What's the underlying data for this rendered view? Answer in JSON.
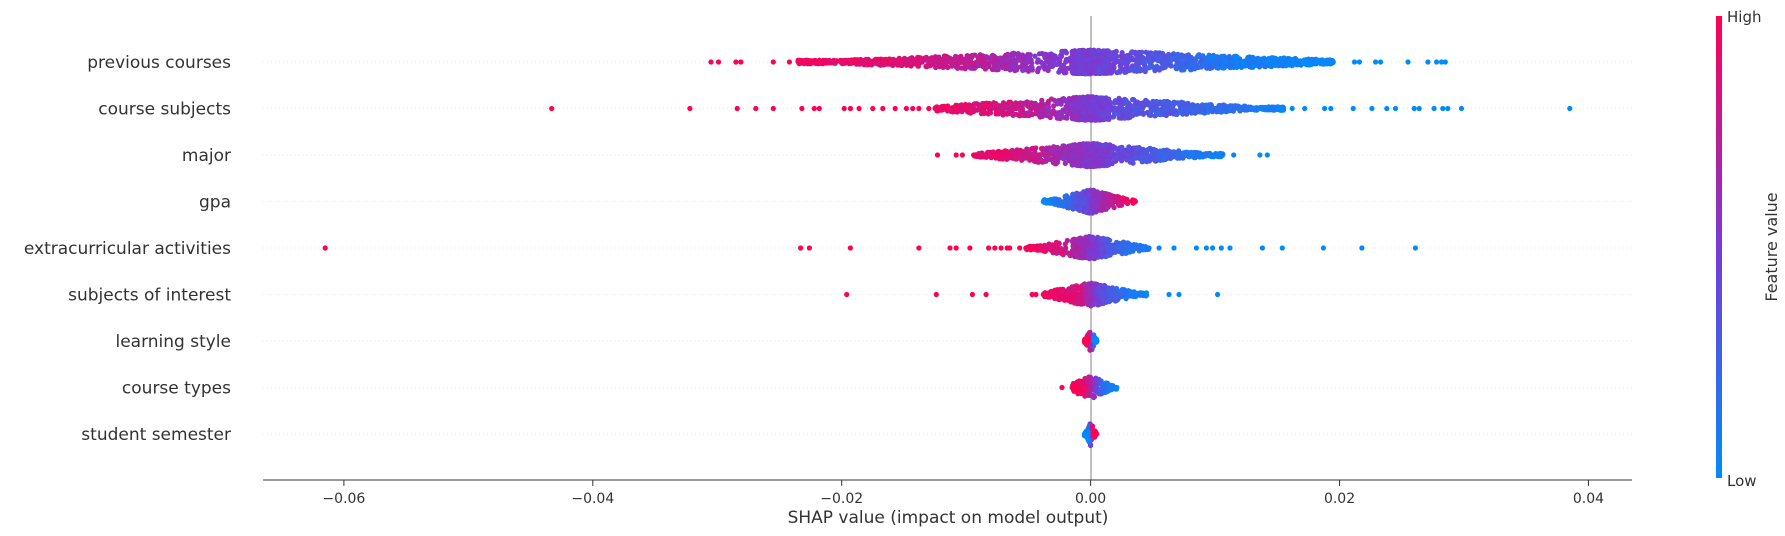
{
  "chart_data": {
    "type": "scatter",
    "subtype": "beeswarm",
    "xlabel": "SHAP value (impact on model output)",
    "xlim": [
      -0.0665,
      0.0435
    ],
    "xticks": [
      -0.06,
      -0.04,
      -0.02,
      0.0,
      0.02,
      0.04
    ],
    "xtick_labels": [
      "−0.06",
      "−0.04",
      "−0.02",
      "0.00",
      "0.02",
      "0.04"
    ],
    "grid": false,
    "colorbar": {
      "label": "Feature value",
      "high_label": "High",
      "low_label": "Low",
      "low_color": "#008bfb",
      "mid_color": "#7a3ad4",
      "high_color": "#ff0052"
    },
    "features": [
      {
        "name": "previous courses",
        "points": [
          [
            -0.0305,
            1
          ],
          [
            -0.0299,
            1
          ],
          [
            -0.0285,
            1
          ],
          [
            -0.0281,
            1
          ],
          [
            -0.0255,
            1
          ],
          [
            -0.0242,
            1
          ],
          [
            -0.0235,
            0.95
          ],
          [
            -0.022,
            0.95
          ],
          [
            -0.02,
            0.92
          ],
          [
            -0.018,
            0.9
          ],
          [
            -0.016,
            0.88
          ],
          [
            -0.014,
            0.85
          ],
          [
            -0.012,
            0.8
          ],
          [
            -0.01,
            0.75
          ],
          [
            -0.008,
            0.7
          ],
          [
            -0.006,
            0.62
          ],
          [
            -0.004,
            0.55
          ],
          [
            -0.002,
            0.5
          ],
          [
            0.002,
            0.45
          ],
          [
            0.004,
            0.35
          ],
          [
            0.006,
            0.3
          ],
          [
            0.008,
            0.22
          ],
          [
            0.01,
            0.15
          ],
          [
            0.012,
            0.1
          ],
          [
            0.014,
            0.08
          ],
          [
            0.016,
            0.05
          ],
          [
            0.018,
            0.03
          ],
          [
            0.0195,
            0.02
          ],
          [
            0.0212,
            0
          ],
          [
            0.0216,
            0
          ],
          [
            0.0229,
            0
          ],
          [
            0.0233,
            0
          ],
          [
            0.0255,
            0
          ],
          [
            0.0271,
            0
          ],
          [
            0.0278,
            0
          ],
          [
            0.0282,
            0
          ],
          [
            0.0285,
            0
          ]
        ],
        "range": [
          -0.0235,
          0.0195
        ]
      },
      {
        "name": "course subjects",
        "points": [
          [
            -0.0433,
            1
          ],
          [
            -0.0322,
            1
          ],
          [
            -0.0284,
            1
          ],
          [
            -0.0269,
            1
          ],
          [
            -0.0255,
            1
          ],
          [
            -0.0232,
            1
          ],
          [
            -0.0222,
            1
          ],
          [
            -0.0218,
            1
          ],
          [
            -0.0198,
            1
          ],
          [
            -0.0193,
            1
          ],
          [
            -0.0186,
            1
          ],
          [
            -0.0175,
            1
          ],
          [
            -0.0167,
            1
          ],
          [
            -0.0157,
            1
          ],
          [
            -0.0148,
            1
          ],
          [
            -0.0143,
            1
          ],
          [
            -0.0138,
            1
          ],
          [
            -0.013,
            1
          ],
          [
            -0.0125,
            0.95
          ],
          [
            -0.01,
            0.9
          ],
          [
            -0.008,
            0.85
          ],
          [
            -0.006,
            0.8
          ],
          [
            -0.004,
            0.7
          ],
          [
            -0.002,
            0.6
          ],
          [
            0.002,
            0.4
          ],
          [
            0.004,
            0.35
          ],
          [
            0.006,
            0.3
          ],
          [
            0.008,
            0.25
          ],
          [
            0.01,
            0.2
          ],
          [
            0.012,
            0.15
          ],
          [
            0.013,
            0.12
          ],
          [
            0.014,
            0.08
          ],
          [
            0.0155,
            0.05
          ],
          [
            0.0162,
            0
          ],
          [
            0.0172,
            0
          ],
          [
            0.0188,
            0
          ],
          [
            0.0193,
            0
          ],
          [
            0.0211,
            0
          ],
          [
            0.0226,
            0
          ],
          [
            0.0238,
            0
          ],
          [
            0.0245,
            0
          ],
          [
            0.026,
            0
          ],
          [
            0.0264,
            0
          ],
          [
            0.0276,
            0
          ],
          [
            0.0283,
            0
          ],
          [
            0.0287,
            0
          ],
          [
            0.0298,
            0
          ],
          [
            0.0385,
            0
          ]
        ],
        "range": [
          -0.0125,
          0.0155
        ]
      },
      {
        "name": "major",
        "points": [
          [
            -0.0123,
            1
          ],
          [
            -0.0108,
            1
          ],
          [
            -0.0103,
            1
          ],
          [
            -0.0094,
            0.95
          ],
          [
            -0.008,
            0.9
          ],
          [
            -0.006,
            0.85
          ],
          [
            -0.004,
            0.75
          ],
          [
            -0.002,
            0.6
          ],
          [
            0.001,
            0.5
          ],
          [
            0.003,
            0.4
          ],
          [
            0.005,
            0.3
          ],
          [
            0.007,
            0.2
          ],
          [
            0.009,
            0.12
          ],
          [
            0.01,
            0.08
          ],
          [
            0.0115,
            0.03
          ],
          [
            0.0136,
            0
          ],
          [
            0.0142,
            0
          ]
        ],
        "range": [
          -0.0094,
          0.0108
        ]
      },
      {
        "name": "gpa",
        "points": [
          [
            -0.0038,
            0
          ],
          [
            -0.003,
            0.1
          ],
          [
            -0.002,
            0.2
          ],
          [
            -0.001,
            0.35
          ],
          [
            0.0,
            0.5
          ],
          [
            0.001,
            0.65
          ],
          [
            0.002,
            0.8
          ],
          [
            0.003,
            0.92
          ],
          [
            0.0036,
            1
          ]
        ],
        "range": [
          -0.0038,
          0.0036
        ]
      },
      {
        "name": "extracurricular activities",
        "points": [
          [
            -0.0615,
            1
          ],
          [
            -0.0233,
            1
          ],
          [
            -0.0226,
            1
          ],
          [
            -0.0193,
            1
          ],
          [
            -0.0138,
            1
          ],
          [
            -0.0113,
            1
          ],
          [
            -0.0108,
            1
          ],
          [
            -0.0097,
            1
          ],
          [
            -0.0082,
            1
          ],
          [
            -0.0077,
            1
          ],
          [
            -0.0072,
            1
          ],
          [
            -0.0067,
            1
          ],
          [
            -0.0065,
            1
          ],
          [
            -0.0057,
            1
          ],
          [
            -0.0052,
            0.95
          ],
          [
            -0.004,
            0.9
          ],
          [
            -0.002,
            0.8
          ],
          [
            0.001,
            0.4
          ],
          [
            0.002,
            0.25
          ],
          [
            0.0035,
            0.15
          ],
          [
            0.0047,
            0.1
          ],
          [
            0.0055,
            0.05
          ],
          [
            0.0067,
            0
          ],
          [
            0.0085,
            0
          ],
          [
            0.0093,
            0
          ],
          [
            0.0098,
            0
          ],
          [
            0.0105,
            0
          ],
          [
            0.0112,
            0
          ],
          [
            0.0138,
            0
          ],
          [
            0.0154,
            0
          ],
          [
            0.0187,
            0
          ],
          [
            0.0218,
            0
          ],
          [
            0.0261,
            0
          ]
        ],
        "range": [
          -0.0052,
          0.0047
        ]
      },
      {
        "name": "subjects of interest",
        "points": [
          [
            -0.0196,
            1
          ],
          [
            -0.0124,
            1
          ],
          [
            -0.0095,
            1
          ],
          [
            -0.0084,
            1
          ],
          [
            -0.0047,
            1
          ],
          [
            -0.0044,
            1
          ],
          [
            -0.0038,
            0.95
          ],
          [
            -0.002,
            0.9
          ],
          [
            -0.001,
            0.85
          ],
          [
            0.001,
            0.35
          ],
          [
            0.002,
            0.25
          ],
          [
            0.003,
            0.15
          ],
          [
            0.0045,
            0.05
          ],
          [
            0.0063,
            0
          ],
          [
            0.0071,
            0
          ],
          [
            0.0102,
            0
          ]
        ],
        "range": [
          -0.0038,
          0.0045
        ]
      },
      {
        "name": "learning style",
        "points": [
          [
            -0.0005,
            1
          ],
          [
            -0.0002,
            1
          ],
          [
            0.0003,
            0
          ],
          [
            0.0005,
            0
          ]
        ],
        "range": [
          -0.0005,
          0.0005
        ]
      },
      {
        "name": "course types",
        "points": [
          [
            -0.0023,
            1
          ],
          [
            -0.0012,
            1
          ],
          [
            -0.0005,
            0.9
          ],
          [
            0.0,
            0.7
          ],
          [
            0.0005,
            0.4
          ],
          [
            0.001,
            0.2
          ],
          [
            0.0015,
            0.1
          ],
          [
            0.0021,
            0
          ]
        ],
        "range": [
          -0.0012,
          0.0021
        ]
      },
      {
        "name": "student semester",
        "points": [
          [
            -0.0005,
            0
          ],
          [
            -0.0002,
            0
          ],
          [
            0.0002,
            1
          ],
          [
            0.0005,
            1
          ]
        ],
        "range": [
          -0.0005,
          0.0005
        ]
      }
    ]
  }
}
